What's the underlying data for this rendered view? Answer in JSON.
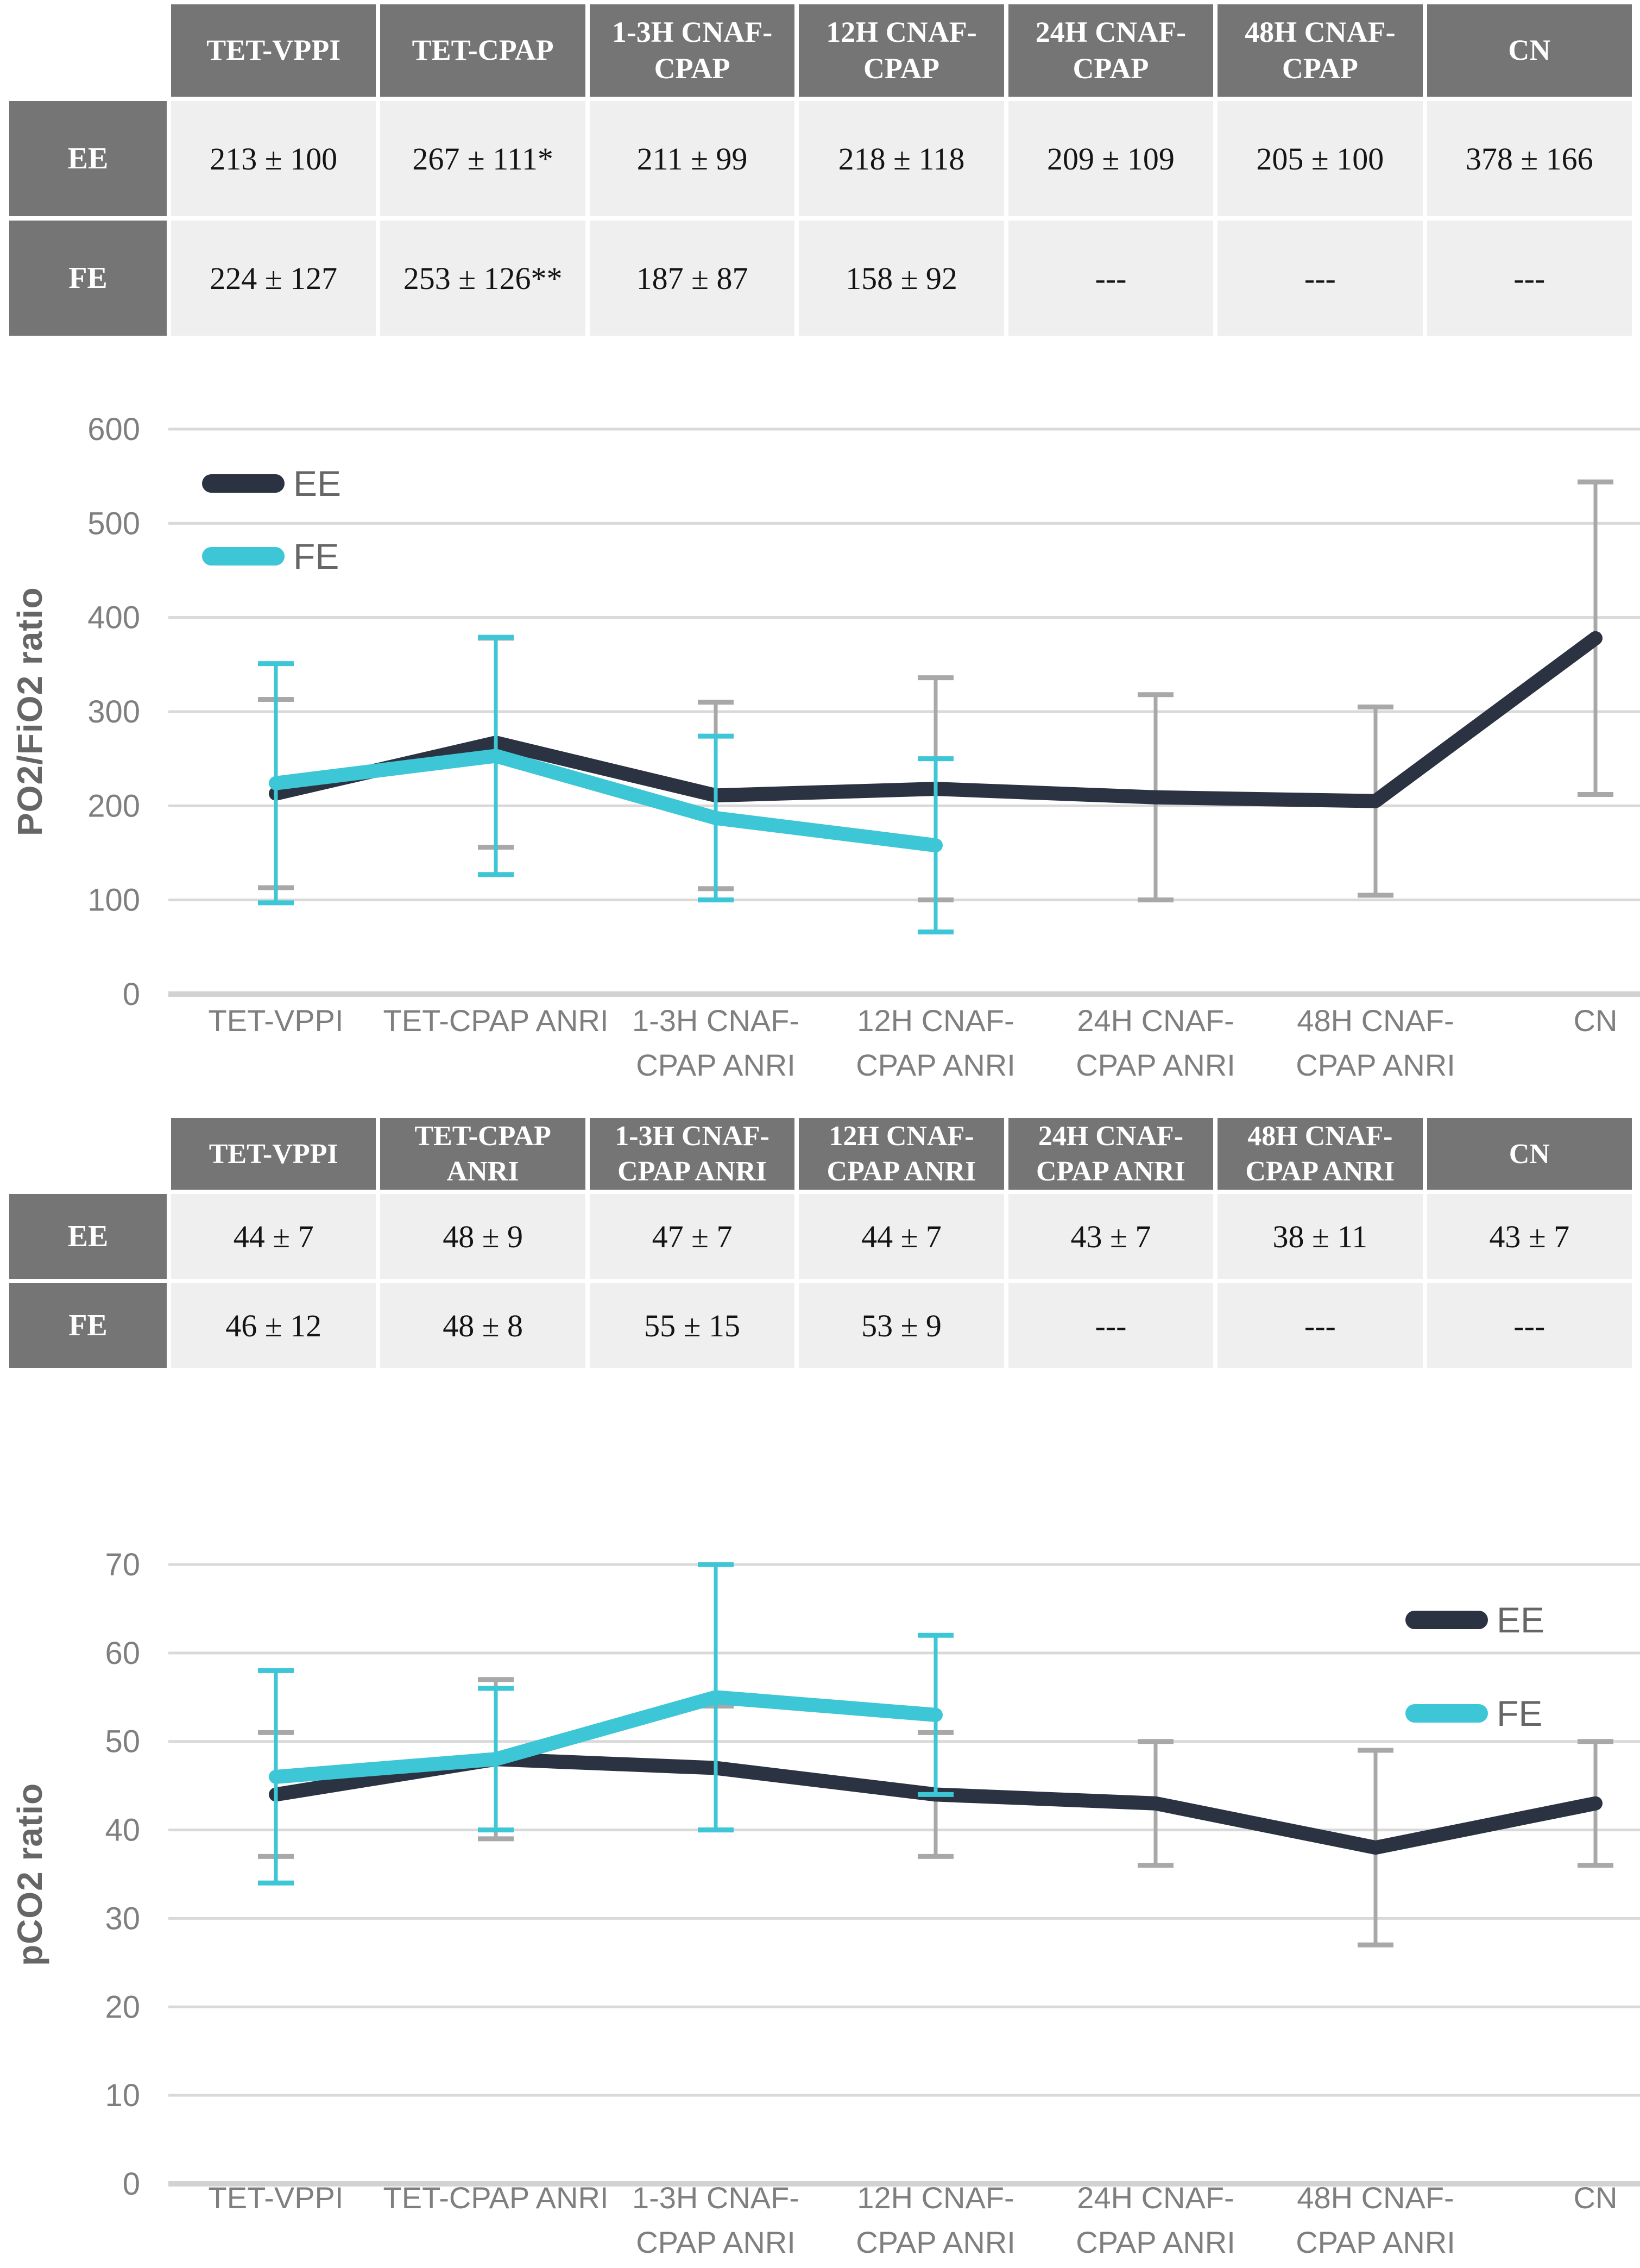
{
  "palette": {
    "header_bg": "#757575",
    "header_text": "#ffffff",
    "cell_bg": "#efefef",
    "cell_text": "#141414",
    "grid": "#d9d9d9",
    "baseline": "#d2d2d2",
    "axis_text": "#7f7f7f",
    "legend_text": "#666666",
    "ee": "#2b3342",
    "fe": "#3cc6d6",
    "ee_err": "#a8a8a8"
  },
  "table1": {
    "columns": [
      "TET-VPPI",
      "TET-CPAP",
      "1-3H CNAF-\nCPAP",
      "12H CNAF-\nCPAP",
      "24H CNAF-\nCPAP",
      "48H  CNAF-\nCPAP",
      "CN"
    ],
    "rows": [
      {
        "label": "EE",
        "values": [
          "213 ± 100",
          "267 ± 111*",
          "211 ± 99",
          "218 ± 118",
          "209 ± 109",
          "205 ± 100",
          "378 ± 166"
        ]
      },
      {
        "label": "FE",
        "values": [
          "224 ± 127",
          "253 ± 126**",
          "187 ± 87",
          "158 ± 92",
          "---",
          "---",
          "---"
        ]
      }
    ]
  },
  "table2": {
    "columns": [
      "TET-VPPI",
      "TET-CPAP\nANRI",
      "1-3H CNAF-\nCPAP ANRI",
      "12H CNAF-\nCPAP ANRI",
      "24H CNAF-\nCPAP ANRI",
      "48H  CNAF-\nCPAP ANRI",
      "CN"
    ],
    "rows": [
      {
        "label": "EE",
        "values": [
          "44 ± 7",
          "48 ± 9",
          "47 ± 7",
          "44 ± 7",
          "43 ± 7",
          "38 ± 11",
          "43 ± 7"
        ]
      },
      {
        "label": "FE",
        "values": [
          "46 ± 12",
          "48 ± 8",
          "55 ± 15",
          "53 ± 9",
          "---",
          "---",
          "---"
        ]
      }
    ]
  },
  "chart_data": [
    {
      "type": "line",
      "title": "",
      "xlabel": "",
      "ylabel": "PO2/FiO2 ratio",
      "ylim": [
        0,
        600
      ],
      "ytick_step": 100,
      "grid": true,
      "legend_position": "top-left",
      "categories": [
        "TET-VPPI",
        "TET-CPAP ANRI",
        "1-3H CNAF-\nCPAP ANRI",
        "12H CNAF-\nCPAP ANRI",
        "24H CNAF-\nCPAP ANRI",
        "48H  CNAF-\nCPAP ANRI",
        "CN"
      ],
      "series": [
        {
          "name": "EE",
          "color_key": "ee",
          "error_color_key": "ee_err",
          "values": [
            213,
            267,
            211,
            218,
            209,
            205,
            378
          ],
          "errors": [
            100,
            111,
            99,
            118,
            109,
            100,
            166
          ]
        },
        {
          "name": "FE",
          "color_key": "fe",
          "error_color_key": "fe",
          "values": [
            224,
            253,
            187,
            158,
            null,
            null,
            null
          ],
          "errors": [
            127,
            126,
            87,
            92,
            null,
            null,
            null
          ]
        }
      ]
    },
    {
      "type": "line",
      "title": "",
      "xlabel": "",
      "ylabel": "pCO2 ratio",
      "ylim": [
        0,
        70
      ],
      "ytick_step": 10,
      "grid": true,
      "legend_position": "top-right",
      "categories": [
        "TET-VPPI",
        "TET-CPAP ANRI",
        "1-3H CNAF-\nCPAP ANRI",
        "12H CNAF-\nCPAP ANRI",
        "24H CNAF-\nCPAP ANRI",
        "48H  CNAF-\nCPAP ANRI",
        "CN"
      ],
      "series": [
        {
          "name": "EE",
          "color_key": "ee",
          "error_color_key": "ee_err",
          "values": [
            44,
            48,
            47,
            44,
            43,
            38,
            43
          ],
          "errors": [
            7,
            9,
            7,
            7,
            7,
            11,
            7
          ]
        },
        {
          "name": "FE",
          "color_key": "fe",
          "error_color_key": "fe",
          "values": [
            46,
            48,
            55,
            53,
            null,
            null,
            null
          ],
          "errors": [
            12,
            8,
            15,
            9,
            null,
            null,
            null
          ]
        }
      ]
    }
  ]
}
